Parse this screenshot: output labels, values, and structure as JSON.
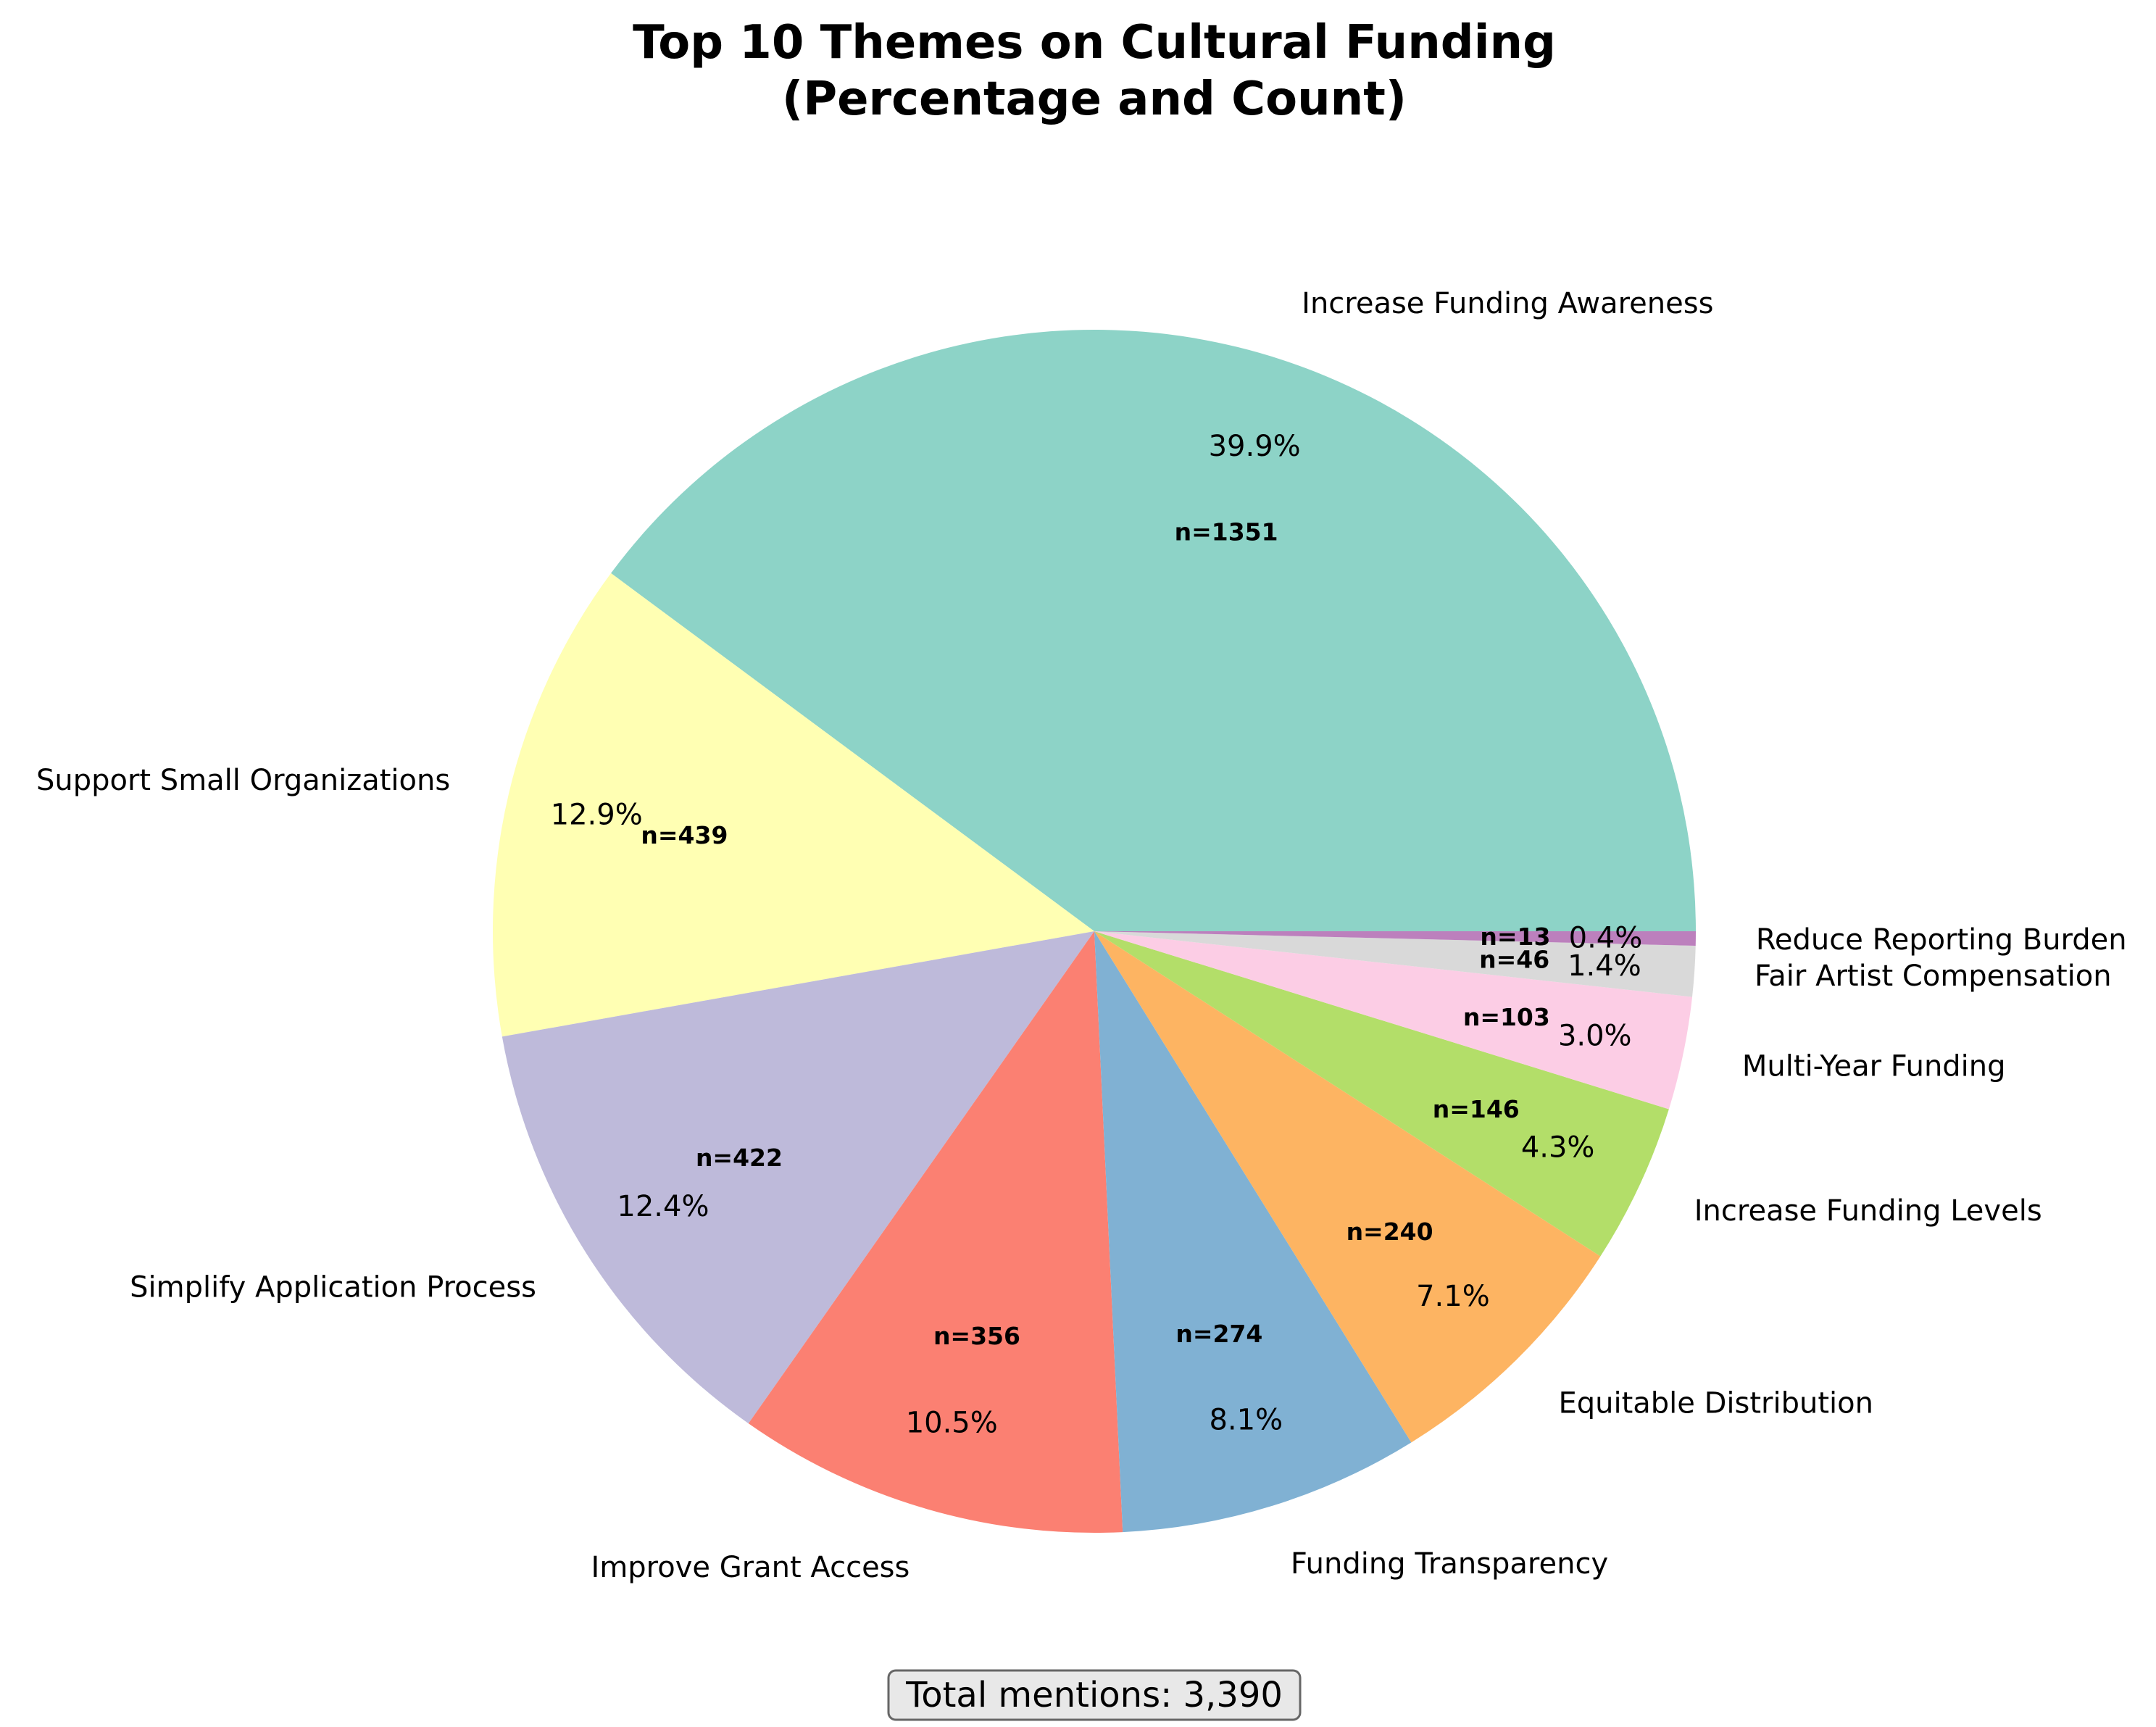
{
  "chart_data": {
    "type": "pie",
    "title_lines": [
      "Top 10 Themes on Cultural Funding",
      "(Percentage and Count)"
    ],
    "slices": [
      {
        "label": "Increase Funding Awareness",
        "count": 1351,
        "pct_text": "39.9%",
        "count_text": "n=1351",
        "color": "#8dd3c7"
      },
      {
        "label": "Support Small Organizations",
        "count": 439,
        "pct_text": "12.9%",
        "count_text": "n=439",
        "color": "#ffffb3"
      },
      {
        "label": "Simplify Application Process",
        "count": 422,
        "pct_text": "12.4%",
        "count_text": "n=422",
        "color": "#bebada"
      },
      {
        "label": "Improve Grant Access",
        "count": 356,
        "pct_text": "10.5%",
        "count_text": "n=356",
        "color": "#fb8072"
      },
      {
        "label": "Funding Transparency",
        "count": 274,
        "pct_text": "8.1%",
        "count_text": "n=274",
        "color": "#80b1d3"
      },
      {
        "label": "Equitable Distribution",
        "count": 240,
        "pct_text": "7.1%",
        "count_text": "n=240",
        "color": "#fdb462"
      },
      {
        "label": "Increase Funding Levels",
        "count": 146,
        "pct_text": "4.3%",
        "count_text": "n=146",
        "color": "#b3de69"
      },
      {
        "label": "Multi-Year Funding",
        "count": 103,
        "pct_text": "3.0%",
        "count_text": "n=103",
        "color": "#fccde5"
      },
      {
        "label": "Fair Artist Compensation",
        "count": 46,
        "pct_text": "1.4%",
        "count_text": "n=46",
        "color": "#d9d9d9"
      },
      {
        "label": "Reduce Reporting Burden",
        "count": 13,
        "pct_text": "0.4%",
        "count_text": "n=13",
        "color": "#bc80bd"
      }
    ],
    "start_angle_deg": 0,
    "direction": "counterclockwise",
    "total_text": "Total mentions: 3,390"
  }
}
